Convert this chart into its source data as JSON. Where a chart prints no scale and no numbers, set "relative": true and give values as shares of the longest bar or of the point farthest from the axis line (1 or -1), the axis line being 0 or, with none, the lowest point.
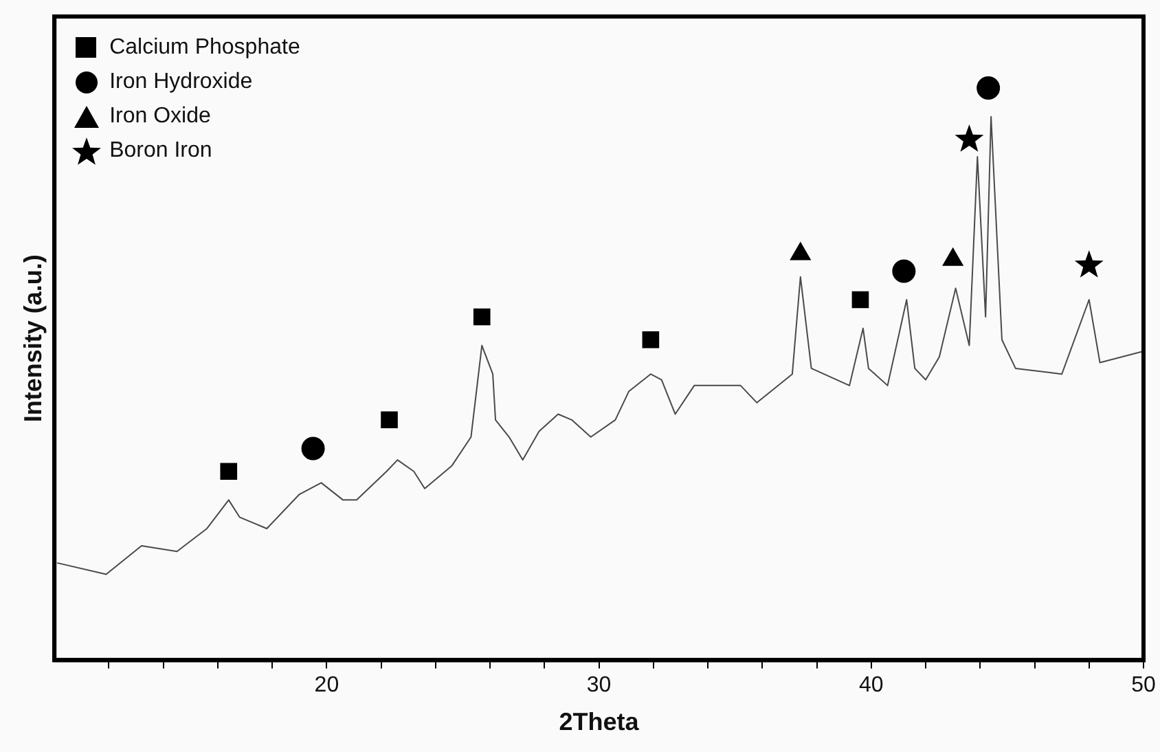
{
  "chart_data": {
    "type": "line",
    "xlabel": "2Theta",
    "ylabel": "Intensity (a.u.)",
    "relative": true,
    "xlim": [
      10,
      50
    ],
    "xticks": [
      {
        "value": 12,
        "label": null
      },
      {
        "value": 14,
        "label": null
      },
      {
        "value": 16,
        "label": null
      },
      {
        "value": 18,
        "label": null
      },
      20,
      {
        "value": 22,
        "label": null
      },
      {
        "value": 24,
        "label": null
      },
      {
        "value": 26,
        "label": null
      },
      {
        "value": 28,
        "label": null
      },
      30,
      {
        "value": 32,
        "label": null
      },
      {
        "value": 34,
        "label": null
      },
      {
        "value": 36,
        "label": null
      },
      {
        "value": 38,
        "label": null
      },
      40,
      {
        "value": 42,
        "label": null
      },
      {
        "value": 44,
        "label": null
      },
      {
        "value": 46,
        "label": null
      },
      {
        "value": 48,
        "label": null
      },
      50
    ],
    "grid": false,
    "legend": "top left",
    "series": [
      {
        "color": "#4a4a4a",
        "marker": "none",
        "x": [
          10.1,
          11.9,
          13.2,
          14.5,
          15.6,
          16.4,
          16.8,
          17.8,
          19.0,
          19.8,
          20.6,
          21.1,
          22.2,
          22.6,
          23.2,
          23.6,
          24.6,
          25.3,
          25.7,
          26.1,
          26.2,
          26.7,
          27.2,
          27.8,
          28.5,
          29.0,
          29.7,
          30.6,
          31.1,
          31.9,
          32.3,
          32.8,
          33.5,
          34.5,
          35.2,
          35.8,
          37.1,
          37.4,
          37.8,
          39.2,
          39.7,
          39.9,
          40.6,
          41.3,
          41.6,
          42.0,
          42.5,
          43.1,
          43.6,
          43.9,
          44.2,
          44.4,
          44.8,
          45.3,
          47.0,
          48.0,
          48.4,
          50.0
        ],
        "values": [
          0.17,
          0.15,
          0.2,
          0.19,
          0.23,
          0.28,
          0.25,
          0.23,
          0.29,
          0.31,
          0.28,
          0.28,
          0.33,
          0.35,
          0.33,
          0.3,
          0.34,
          0.39,
          0.55,
          0.5,
          0.42,
          0.39,
          0.35,
          0.4,
          0.43,
          0.42,
          0.39,
          0.42,
          0.47,
          0.5,
          0.49,
          0.43,
          0.48,
          0.48,
          0.48,
          0.45,
          0.5,
          0.67,
          0.51,
          0.48,
          0.58,
          0.51,
          0.48,
          0.63,
          0.51,
          0.49,
          0.53,
          0.65,
          0.55,
          0.88,
          0.6,
          0.95,
          0.56,
          0.51,
          0.5,
          0.63,
          0.52,
          0.54
        ]
      },
      {
        "type": "scatter",
        "name": "Calcium Phosphate",
        "color": "#000000",
        "marker": "square",
        "x": [
          16.4,
          22.3,
          25.7,
          31.9,
          39.6
        ],
        "values": [
          0.33,
          0.42,
          0.6,
          0.56,
          0.63
        ]
      },
      {
        "type": "scatter",
        "name": "Iron Hydroxide",
        "color": "#000000",
        "marker": "circle",
        "x": [
          19.5,
          41.2,
          44.3
        ],
        "values": [
          0.37,
          0.68,
          1
        ]
      },
      {
        "type": "scatter",
        "name": "Iron Oxide",
        "color": "#000000",
        "marker": "triangle",
        "x": [
          37.4,
          43.0
        ],
        "values": [
          0.71,
          0.7
        ]
      },
      {
        "type": "scatter",
        "name": "Boron Iron",
        "color": "#000000",
        "marker": "star",
        "x": [
          43.6,
          48.0
        ],
        "values": [
          0.91,
          0.69
        ]
      }
    ]
  }
}
